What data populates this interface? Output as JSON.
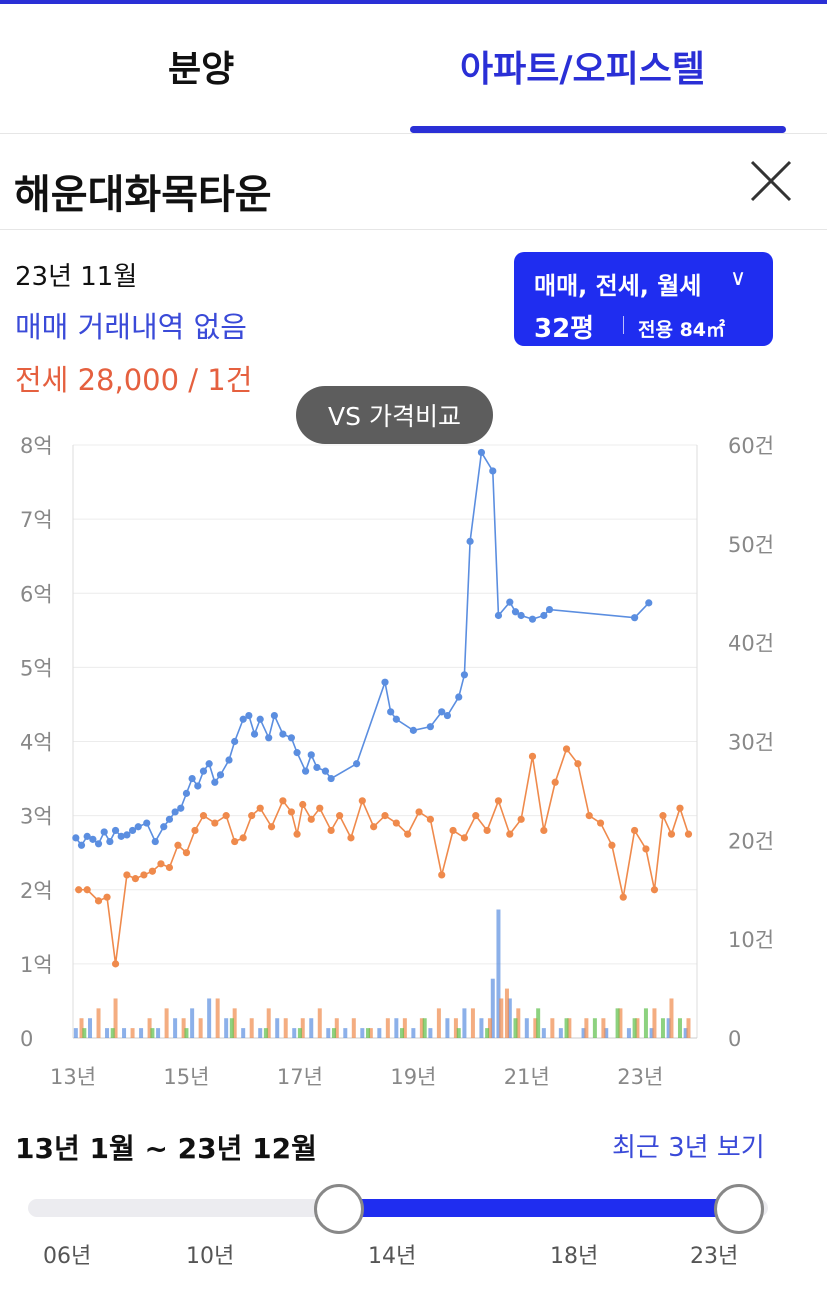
{
  "tabs": {
    "bunyang": "분양",
    "apartment": "아파트/오피스텔",
    "active": "apartment"
  },
  "complex": {
    "name": "해운대화목타운"
  },
  "info": {
    "date": "23년 11월",
    "sale_status": "매매 거래내역 없음",
    "jeonse_status": "전세 28,000 / 1건"
  },
  "filter": {
    "deal_types": "매매, 전세, 월세",
    "size": "32평",
    "area": "전용 84㎡"
  },
  "compare_button": "VS 가격비교",
  "range": {
    "text": "13년 1월 ~ 23년 12월",
    "recent_link": "최근 3년 보기"
  },
  "slider": {
    "ticks": [
      "06년",
      "10년",
      "14년",
      "18년",
      "23년"
    ],
    "start": "14년",
    "end": "23년"
  },
  "colors": {
    "accent": "#1f2df0",
    "sale": "#5b8ee0",
    "jeonse": "#ef8a4c",
    "monthly": "#5cbf4a"
  },
  "chart_data": {
    "type": "line",
    "x_range": [
      2013.0,
      2024.0
    ],
    "x_ticks": [
      "13년",
      "15년",
      "17년",
      "19년",
      "21년",
      "23년"
    ],
    "y_left": {
      "range": [
        0,
        8
      ],
      "ticks": [
        "0",
        "1억",
        "2억",
        "3억",
        "4억",
        "5억",
        "6억",
        "7억",
        "8억"
      ]
    },
    "y_right": {
      "range": [
        0,
        60
      ],
      "ticks": [
        "0",
        "10건",
        "20건",
        "30건",
        "40건",
        "50건",
        "60건"
      ]
    },
    "grid": true,
    "series": [
      {
        "name": "매매",
        "x": [
          2013.05,
          2013.15,
          2013.25,
          2013.35,
          2013.45,
          2013.55,
          2013.65,
          2013.75,
          2013.85,
          2013.95,
          2014.05,
          2014.15,
          2014.3,
          2014.45,
          2014.6,
          2014.7,
          2014.8,
          2014.9,
          2015.0,
          2015.1,
          2015.2,
          2015.3,
          2015.4,
          2015.5,
          2015.6,
          2015.75,
          2015.85,
          2016.0,
          2016.1,
          2016.2,
          2016.3,
          2016.45,
          2016.55,
          2016.7,
          2016.85,
          2016.95,
          2017.1,
          2017.2,
          2017.3,
          2017.45,
          2017.55,
          2018.0,
          2018.5,
          2018.6,
          2018.7,
          2019.0,
          2019.3,
          2019.5,
          2019.6,
          2019.8,
          2019.9,
          2020.0,
          2020.2,
          2020.4,
          2020.5,
          2020.7,
          2020.8,
          2020.9,
          2021.1,
          2021.3,
          2021.4,
          2022.9,
          2023.15
        ],
        "values": [
          2.7,
          2.6,
          2.72,
          2.68,
          2.62,
          2.78,
          2.65,
          2.8,
          2.72,
          2.74,
          2.8,
          2.85,
          2.9,
          2.65,
          2.85,
          2.95,
          3.05,
          3.1,
          3.3,
          3.5,
          3.4,
          3.6,
          3.7,
          3.45,
          3.55,
          3.75,
          4.0,
          4.3,
          4.35,
          4.1,
          4.3,
          4.05,
          4.35,
          4.1,
          4.05,
          3.85,
          3.6,
          3.82,
          3.65,
          3.6,
          3.5,
          3.7,
          4.8,
          4.4,
          4.3,
          4.15,
          4.2,
          4.4,
          4.35,
          4.6,
          4.9,
          6.7,
          7.9,
          7.65,
          5.7,
          5.88,
          5.75,
          5.7,
          5.65,
          5.7,
          5.78,
          5.67,
          5.87
        ]
      },
      {
        "name": "전세",
        "x": [
          2013.1,
          2013.25,
          2013.45,
          2013.6,
          2013.75,
          2013.95,
          2014.1,
          2014.25,
          2014.4,
          2014.55,
          2014.7,
          2014.85,
          2015.0,
          2015.15,
          2015.3,
          2015.5,
          2015.7,
          2015.85,
          2016.0,
          2016.15,
          2016.3,
          2016.5,
          2016.7,
          2016.85,
          2016.95,
          2017.05,
          2017.2,
          2017.35,
          2017.55,
          2017.7,
          2017.9,
          2018.1,
          2018.3,
          2018.5,
          2018.7,
          2018.9,
          2019.1,
          2019.3,
          2019.5,
          2019.7,
          2019.9,
          2020.1,
          2020.3,
          2020.5,
          2020.7,
          2020.9,
          2021.1,
          2021.3,
          2021.5,
          2021.7,
          2021.9,
          2022.1,
          2022.3,
          2022.5,
          2022.7,
          2022.9,
          2023.1,
          2023.25,
          2023.4,
          2023.55,
          2023.7,
          2023.85
        ],
        "values": [
          2.0,
          2.0,
          1.85,
          1.9,
          1.0,
          2.2,
          2.15,
          2.2,
          2.25,
          2.35,
          2.3,
          2.6,
          2.5,
          2.8,
          3.0,
          2.9,
          3.0,
          2.65,
          2.7,
          3.0,
          3.1,
          2.85,
          3.2,
          3.05,
          2.75,
          3.15,
          2.95,
          3.1,
          2.8,
          3.0,
          2.7,
          3.2,
          2.85,
          3.0,
          2.9,
          2.75,
          3.05,
          2.95,
          2.2,
          2.8,
          2.7,
          3.0,
          2.8,
          3.2,
          2.75,
          2.95,
          3.8,
          2.8,
          3.45,
          3.9,
          3.7,
          3.0,
          2.9,
          2.6,
          1.9,
          2.8,
          2.55,
          2.0,
          3.0,
          2.75,
          3.1,
          2.75
        ]
      },
      {
        "name": "거래량 (매매)",
        "type": "bar",
        "x": [
          2013.05,
          2013.3,
          2013.6,
          2013.9,
          2014.2,
          2014.5,
          2014.8,
          2015.1,
          2015.4,
          2015.7,
          2016.0,
          2016.3,
          2016.6,
          2016.9,
          2017.2,
          2017.5,
          2017.8,
          2018.1,
          2018.4,
          2018.7,
          2019.0,
          2019.3,
          2019.6,
          2019.9,
          2020.2,
          2020.4,
          2020.5,
          2020.7,
          2021.0,
          2021.3,
          2021.6,
          2022.0,
          2022.4,
          2022.8,
          2023.2,
          2023.5,
          2023.8
        ],
        "values": [
          1,
          2,
          1,
          1,
          1,
          1,
          2,
          3,
          4,
          2,
          1,
          1,
          2,
          1,
          2,
          1,
          1,
          1,
          1,
          2,
          1,
          1,
          2,
          3,
          2,
          6,
          13,
          4,
          2,
          1,
          1,
          1,
          1,
          1,
          1,
          2,
          1
        ]
      },
      {
        "name": "거래량 (전세)",
        "type": "bar",
        "x": [
          2013.15,
          2013.45,
          2013.75,
          2014.05,
          2014.35,
          2014.65,
          2014.95,
          2015.25,
          2015.55,
          2015.85,
          2016.15,
          2016.45,
          2016.75,
          2017.05,
          2017.35,
          2017.65,
          2017.95,
          2018.25,
          2018.55,
          2018.85,
          2019.15,
          2019.45,
          2019.75,
          2020.05,
          2020.35,
          2020.55,
          2020.65,
          2020.85,
          2021.15,
          2021.45,
          2021.75,
          2022.05,
          2022.35,
          2022.65,
          2022.95,
          2023.25,
          2023.55,
          2023.85
        ],
        "values": [
          2,
          3,
          4,
          1,
          2,
          3,
          2,
          2,
          4,
          3,
          2,
          3,
          2,
          2,
          3,
          2,
          2,
          1,
          2,
          2,
          2,
          3,
          2,
          3,
          2,
          4,
          5,
          3,
          2,
          2,
          2,
          2,
          2,
          3,
          2,
          3,
          4,
          2
        ]
      },
      {
        "name": "거래량 (월세)",
        "type": "bar",
        "x": [
          2013.2,
          2013.7,
          2014.4,
          2015.0,
          2015.8,
          2016.4,
          2017.0,
          2017.6,
          2018.2,
          2018.8,
          2019.2,
          2019.8,
          2020.3,
          2020.8,
          2021.2,
          2021.7,
          2022.2,
          2022.6,
          2022.9,
          2023.1,
          2023.4,
          2023.7
        ],
        "values": [
          1,
          1,
          1,
          1,
          2,
          1,
          1,
          1,
          1,
          1,
          2,
          1,
          1,
          2,
          3,
          2,
          2,
          3,
          2,
          3,
          2,
          2
        ]
      }
    ]
  }
}
